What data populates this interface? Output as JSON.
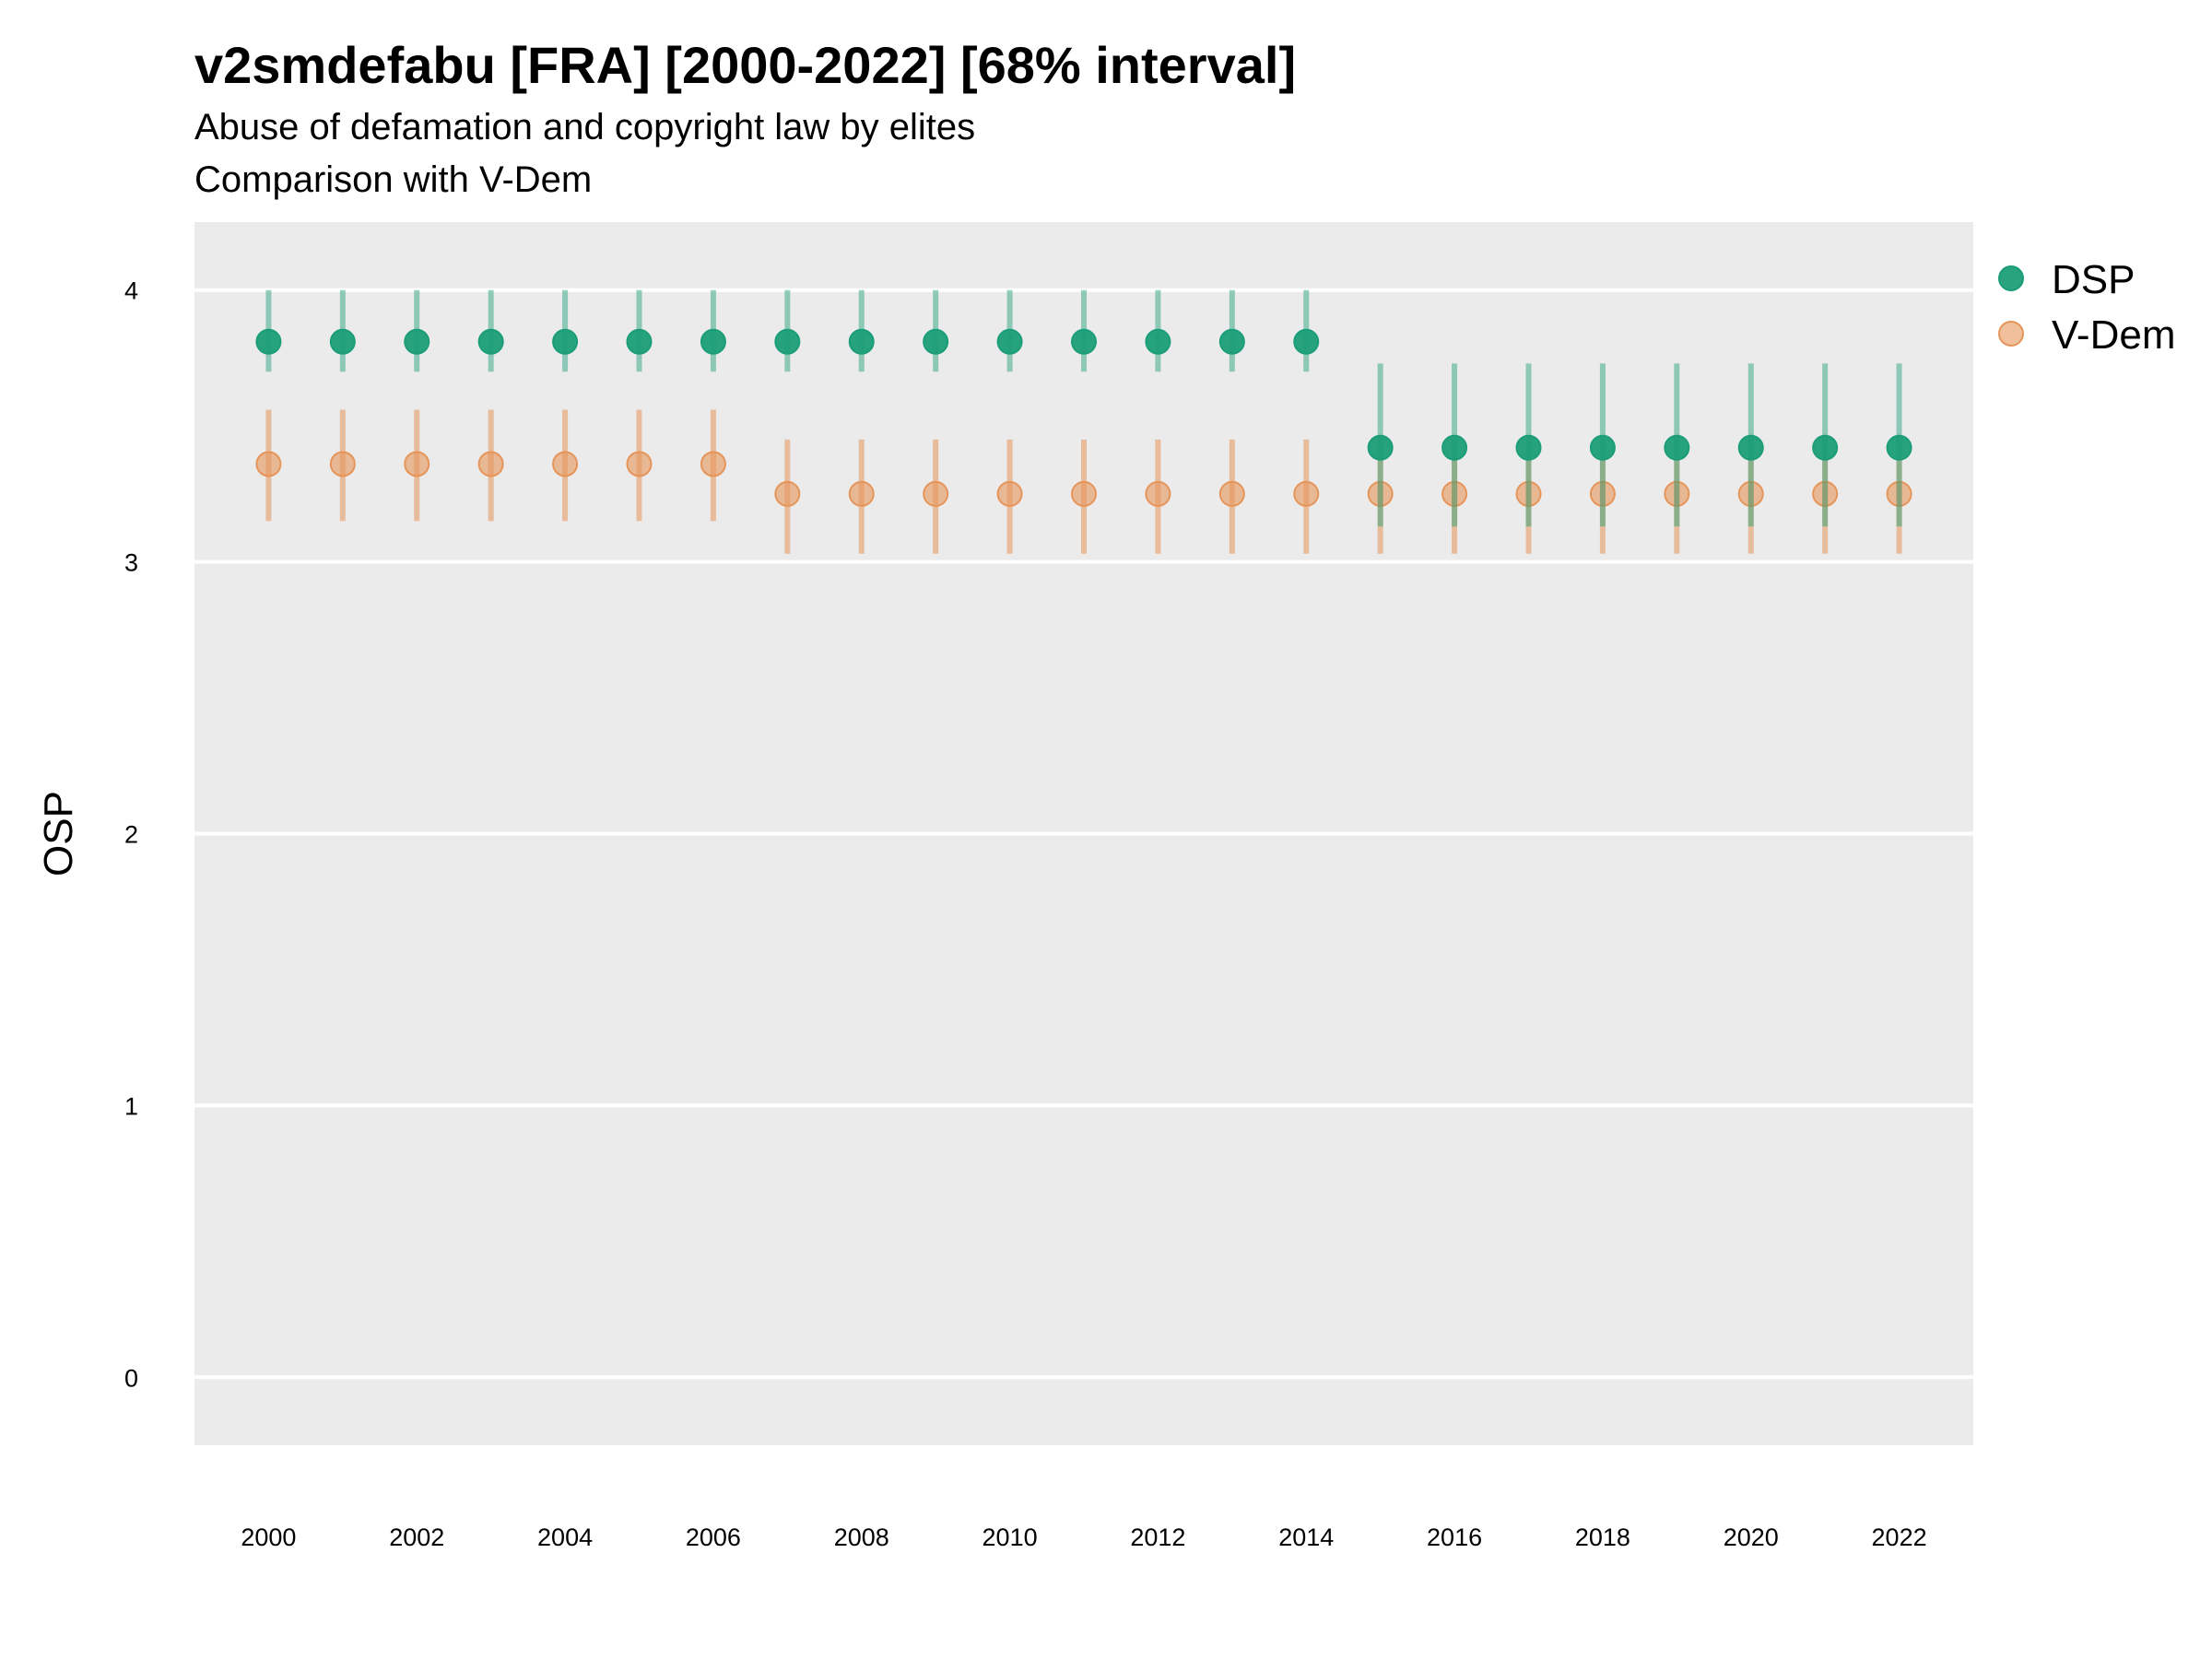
{
  "chart_data": {
    "type": "scatter",
    "title": "v2smdefabu [FRA] [2000-2022] [68% interval]",
    "subtitle": "Abuse of defamation and copyright law by elites",
    "subtitle2": "Comparison with V-Dem",
    "xlabel": "",
    "ylabel": "OSP",
    "ylim": [
      -0.25,
      4.25
    ],
    "yticks": [
      0,
      1,
      2,
      3,
      4
    ],
    "xticks": [
      2000,
      2002,
      2004,
      2006,
      2008,
      2010,
      2012,
      2014,
      2016,
      2018,
      2020,
      2022
    ],
    "grid": true,
    "legend_position": "right",
    "x": [
      2000,
      2001,
      2002,
      2003,
      2004,
      2005,
      2006,
      2007,
      2008,
      2009,
      2010,
      2011,
      2012,
      2013,
      2014,
      2015,
      2016,
      2017,
      2018,
      2019,
      2020,
      2021,
      2022
    ],
    "series": [
      {
        "name": "DSP",
        "color": "#1b9e77",
        "values": [
          3.81,
          3.81,
          3.81,
          3.81,
          3.81,
          3.81,
          3.81,
          3.81,
          3.81,
          3.81,
          3.81,
          3.81,
          3.81,
          3.81,
          3.81,
          3.42,
          3.42,
          3.42,
          3.42,
          3.42,
          3.42,
          3.42,
          3.42
        ],
        "lower": [
          3.7,
          3.7,
          3.7,
          3.7,
          3.7,
          3.7,
          3.7,
          3.7,
          3.7,
          3.7,
          3.7,
          3.7,
          3.7,
          3.7,
          3.7,
          3.13,
          3.13,
          3.13,
          3.13,
          3.13,
          3.13,
          3.13,
          3.13
        ],
        "upper": [
          4.0,
          4.0,
          4.0,
          4.0,
          4.0,
          4.0,
          4.0,
          4.0,
          4.0,
          4.0,
          4.0,
          4.0,
          4.0,
          4.0,
          4.0,
          3.73,
          3.73,
          3.73,
          3.73,
          3.73,
          3.73,
          3.73,
          3.73
        ]
      },
      {
        "name": "V-Dem",
        "color": "#e6955a",
        "values": [
          3.36,
          3.36,
          3.36,
          3.36,
          3.36,
          3.36,
          3.36,
          3.25,
          3.25,
          3.25,
          3.25,
          3.25,
          3.25,
          3.25,
          3.25,
          3.25,
          3.25,
          3.25,
          3.25,
          3.25,
          3.25,
          3.25,
          3.25
        ],
        "lower": [
          3.15,
          3.15,
          3.15,
          3.15,
          3.15,
          3.15,
          3.15,
          3.03,
          3.03,
          3.03,
          3.03,
          3.03,
          3.03,
          3.03,
          3.03,
          3.03,
          3.03,
          3.03,
          3.03,
          3.03,
          3.03,
          3.03,
          3.03
        ],
        "upper": [
          3.56,
          3.56,
          3.56,
          3.56,
          3.56,
          3.56,
          3.56,
          3.45,
          3.45,
          3.45,
          3.45,
          3.45,
          3.45,
          3.45,
          3.45,
          3.45,
          3.45,
          3.45,
          3.45,
          3.45,
          3.45,
          3.45,
          3.45
        ]
      }
    ]
  }
}
